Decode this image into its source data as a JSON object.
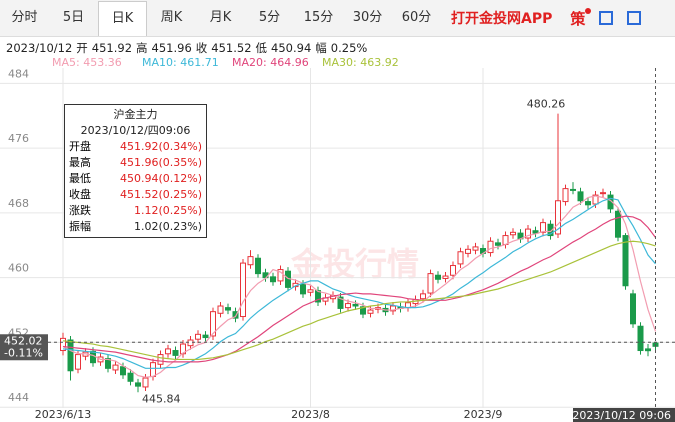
{
  "tabs": [
    "分时",
    "5日",
    "日K",
    "周K",
    "月K",
    "5分",
    "15分",
    "30分",
    "60分"
  ],
  "selected_tab": 2,
  "app_link": "打开金投网APP",
  "strategy": "策",
  "info": [
    "2023/10/12",
    "开",
    "451.92",
    "高",
    "451.96",
    "收",
    "451.52",
    "低",
    "450.94",
    "幅",
    "0.25%"
  ],
  "tooltip": {
    "title": "沪金主力",
    "date": "2023/10/12/四09:06",
    "rows": [
      [
        "开盘",
        "451.92(0.34%)"
      ],
      [
        "最高",
        "451.96(0.35%)"
      ],
      [
        "最低",
        "450.94(0.12%)"
      ],
      [
        "收盘",
        "451.52(0.25%)"
      ],
      [
        "涨跌",
        "1.12(0.25%)"
      ],
      [
        "振幅",
        "1.02(0.23%)"
      ]
    ]
  },
  "watermark": "金投行情",
  "chart_data": {
    "type": "candlestick",
    "categories": [
      "2023/6/13",
      null,
      null,
      null,
      null,
      null,
      null,
      null,
      null,
      null,
      null,
      null,
      null,
      null,
      null,
      null,
      null,
      null,
      null,
      null,
      null,
      null,
      null,
      null,
      null,
      null,
      null,
      null,
      null,
      null,
      null,
      null,
      null,
      "2023/8",
      null,
      null,
      null,
      null,
      null,
      null,
      null,
      null,
      null,
      null,
      null,
      null,
      null,
      null,
      null,
      null,
      null,
      null,
      null,
      null,
      null,
      null,
      "2023/9",
      null,
      null,
      null,
      null,
      null,
      null,
      null,
      null,
      null,
      null,
      null,
      null,
      null,
      null,
      null,
      null,
      null,
      null,
      null,
      null,
      null,
      null,
      "2023/10/12 09:06"
    ],
    "open": [
      451.0,
      452.3,
      448.7,
      450.3,
      450.9,
      449.6,
      450.0,
      448.6,
      449.0,
      448.2,
      447.0,
      446.5,
      447.8,
      449.3,
      450.6,
      451.0,
      450.6,
      451.6,
      452.4,
      452.9,
      452.8,
      455.6,
      456.3,
      455.8,
      455.2,
      461.6,
      462.4,
      460.6,
      460.1,
      459.6,
      460.8,
      458.9,
      459.2,
      458.2,
      458.4,
      457.1,
      457.4,
      457.6,
      456.3,
      456.7,
      456.4,
      455.6,
      456.1,
      456.2,
      455.9,
      456.4,
      456.3,
      456.8,
      457.4,
      458.1,
      460.3,
      459.9,
      460.3,
      461.7,
      463.0,
      463.4,
      463.6,
      463.1,
      464.3,
      464.1,
      465.3,
      465.5,
      464.9,
      465.8,
      465.6,
      466.6,
      465.4,
      469.4,
      470.9,
      470.6,
      469.4,
      469.1,
      470.4,
      470.2,
      468.2,
      465.2,
      458.0,
      454.0,
      451.2,
      451.92
    ],
    "high": [
      453.2,
      452.8,
      451.0,
      451.3,
      451.4,
      450.7,
      450.5,
      449.7,
      449.5,
      448.7,
      447.5,
      448.1,
      450.0,
      451.0,
      451.7,
      451.5,
      452.3,
      452.8,
      453.5,
      453.4,
      456.3,
      457.0,
      456.8,
      456.3,
      462.3,
      463.4,
      462.9,
      461.1,
      460.6,
      461.5,
      461.3,
      459.8,
      459.7,
      459.0,
      458.9,
      458.0,
      458.3,
      458.1,
      457.3,
      457.2,
      456.9,
      456.5,
      456.8,
      456.7,
      457.0,
      456.9,
      457.4,
      457.8,
      458.5,
      461.0,
      460.8,
      460.7,
      462.0,
      463.7,
      464.0,
      464.3,
      464.1,
      465.0,
      464.8,
      465.7,
      466.1,
      466.0,
      466.5,
      466.3,
      467.3,
      467.1,
      480.26,
      471.5,
      471.8,
      471.1,
      469.9,
      470.7,
      471.0,
      470.7,
      468.7,
      465.5,
      458.5,
      454.5,
      451.8,
      451.96
    ],
    "low": [
      450.4,
      447.3,
      448.2,
      449.8,
      449.0,
      449.1,
      448.3,
      448.1,
      447.5,
      446.7,
      445.84,
      446.0,
      447.3,
      448.8,
      450.1,
      449.9,
      450.1,
      451.1,
      451.9,
      452.1,
      452.3,
      455.1,
      455.5,
      454.5,
      454.7,
      461.1,
      460.0,
      459.5,
      459.0,
      459.1,
      458.3,
      458.4,
      457.5,
      457.7,
      456.5,
      456.6,
      456.9,
      455.7,
      455.8,
      456.0,
      455.0,
      455.1,
      455.6,
      455.3,
      455.4,
      455.7,
      455.8,
      456.3,
      456.9,
      457.6,
      459.3,
      459.4,
      459.8,
      461.2,
      462.5,
      462.9,
      462.5,
      462.6,
      463.5,
      463.6,
      464.8,
      464.3,
      464.4,
      465.0,
      465.1,
      464.7,
      464.9,
      468.9,
      470.3,
      469.0,
      468.5,
      468.6,
      469.9,
      468.0,
      464.5,
      458.5,
      453.8,
      450.5,
      450.3,
      450.94
    ],
    "close": [
      452.5,
      448.5,
      450.5,
      450.8,
      449.5,
      450.2,
      448.8,
      449.2,
      448.0,
      447.2,
      446.6,
      447.6,
      449.5,
      450.5,
      451.2,
      450.4,
      451.8,
      452.3,
      453.0,
      452.6,
      455.8,
      456.5,
      456.0,
      455.0,
      461.8,
      462.6,
      460.5,
      460.0,
      459.5,
      461.0,
      458.8,
      459.3,
      458.0,
      458.5,
      457.0,
      457.5,
      457.8,
      456.2,
      456.8,
      456.5,
      455.5,
      456.0,
      456.3,
      455.8,
      456.5,
      456.2,
      456.9,
      457.3,
      458.0,
      460.5,
      459.8,
      460.2,
      461.5,
      463.2,
      463.5,
      463.8,
      463.0,
      464.5,
      464.0,
      465.2,
      465.6,
      464.8,
      466.0,
      465.5,
      466.8,
      465.2,
      469.5,
      471.0,
      470.8,
      469.5,
      469.0,
      470.2,
      470.5,
      468.5,
      465.0,
      459.0,
      454.3,
      451.0,
      450.98,
      451.52
    ],
    "up_color": "#e8333a",
    "down_color": "#1a9a4a",
    "ylim": [
      443.9,
      485.9
    ],
    "yticks": [
      444,
      452,
      460,
      468,
      476,
      484
    ],
    "grid": true,
    "ma": [
      {
        "name": "MA5",
        "legend_label": "MA5: 453.36",
        "color": "#f29cb0",
        "values": [
          451.5,
          451.0,
          450.6,
          450.6,
          450.4,
          449.9,
          449.9,
          449.7,
          449.1,
          448.6,
          447.9,
          447.7,
          447.8,
          448.3,
          449.1,
          449.8,
          450.7,
          451.2,
          451.7,
          452.0,
          453.1,
          454.0,
          454.8,
          455.2,
          457.0,
          458.4,
          459.3,
          459.9,
          461.0,
          460.7,
          459.9,
          459.7,
          459.3,
          459.1,
          458.3,
          458.1,
          457.8,
          457.4,
          457.1,
          456.9,
          456.6,
          456.2,
          456.2,
          456.0,
          456.0,
          456.2,
          456.3,
          456.5,
          457.0,
          457.8,
          458.5,
          459.2,
          460.0,
          461.0,
          461.6,
          462.4,
          463.0,
          463.6,
          463.8,
          464.1,
          464.5,
          464.8,
          465.2,
          465.4,
          465.7,
          465.7,
          466.6,
          467.6,
          468.7,
          469.2,
          469.9,
          470.1,
          469.9,
          469.54,
          468.64,
          466.64,
          463.46,
          459.56,
          456.06,
          453.36
        ]
      },
      {
        "name": "MA10",
        "legend_label": "MA10: 461.71",
        "color": "#3db8d8",
        "values": [
          451.2,
          451.1,
          451.0,
          450.9,
          450.8,
          450.7,
          450.5,
          450.3,
          450.0,
          449.6,
          449.2,
          448.8,
          448.8,
          448.8,
          448.9,
          448.9,
          449.2,
          449.6,
          450.1,
          450.6,
          451.3,
          452.1,
          452.7,
          453.1,
          454.0,
          455.0,
          455.8,
          456.5,
          457.2,
          457.8,
          458.4,
          459.0,
          459.3,
          459.6,
          459.6,
          459.1,
          458.6,
          458.3,
          457.9,
          457.6,
          457.4,
          457.2,
          457.0,
          456.7,
          456.6,
          456.4,
          456.3,
          456.3,
          456.4,
          456.7,
          457.1,
          457.5,
          458.0,
          458.7,
          459.3,
          460.0,
          460.6,
          461.3,
          461.9,
          462.5,
          463.2,
          463.7,
          464.3,
          464.8,
          465.2,
          465.4,
          466.0,
          466.7,
          467.2,
          467.8,
          468.4,
          469.0,
          469.5,
          469.8,
          469.6,
          467.9,
          466.4,
          464.7,
          462.8,
          461.71
        ]
      },
      {
        "name": "MA20",
        "legend_label": "MA20: 464.96",
        "color": "#e0457b",
        "values": [
          451.5,
          451.4,
          451.3,
          451.2,
          451.1,
          451.0,
          450.9,
          450.8,
          450.6,
          450.4,
          450.2,
          450.0,
          449.8,
          449.7,
          449.6,
          449.6,
          449.6,
          449.6,
          449.6,
          449.7,
          449.9,
          450.2,
          450.5,
          450.9,
          451.5,
          452.1,
          452.7,
          453.4,
          454.1,
          454.7,
          455.3,
          455.9,
          456.5,
          456.9,
          457.3,
          457.5,
          457.7,
          457.9,
          458.0,
          458.1,
          458.0,
          458.0,
          457.9,
          457.8,
          457.7,
          457.6,
          457.4,
          457.3,
          457.2,
          457.2,
          457.2,
          457.2,
          457.4,
          457.6,
          457.9,
          458.2,
          458.5,
          458.9,
          459.3,
          459.8,
          460.3,
          460.8,
          461.2,
          461.7,
          462.2,
          462.6,
          463.2,
          463.8,
          464.4,
          464.9,
          465.5,
          466.0,
          466.6,
          467.1,
          467.4,
          467.6,
          467.5,
          467.1,
          466.2,
          464.96
        ]
      },
      {
        "name": "MA30",
        "legend_label": "MA30: 463.92",
        "color": "#a9c23a",
        "values": [
          452.2,
          452.1,
          452.0,
          451.9,
          451.8,
          451.6,
          451.5,
          451.3,
          451.1,
          450.9,
          450.7,
          450.5,
          450.3,
          450.1,
          450.0,
          449.9,
          449.9,
          449.9,
          449.9,
          450.0,
          450.1,
          450.3,
          450.5,
          450.8,
          451.1,
          451.4,
          451.7,
          452.1,
          452.4,
          452.8,
          453.2,
          453.6,
          454.0,
          454.3,
          454.7,
          455.0,
          455.3,
          455.6,
          455.9,
          456.1,
          456.3,
          456.5,
          456.6,
          456.8,
          456.9,
          457.0,
          457.0,
          457.1,
          457.2,
          457.3,
          457.4,
          457.5,
          457.6,
          457.7,
          457.8,
          458.0,
          458.2,
          458.4,
          458.6,
          458.9,
          459.2,
          459.5,
          459.8,
          460.1,
          460.4,
          460.7,
          461.1,
          461.5,
          461.9,
          462.3,
          462.7,
          463.1,
          463.5,
          463.9,
          464.2,
          464.4,
          464.5,
          464.4,
          464.2,
          463.92
        ]
      }
    ],
    "crosshair_price": 452.02,
    "crosshair_change": "-0.11%"
  }
}
